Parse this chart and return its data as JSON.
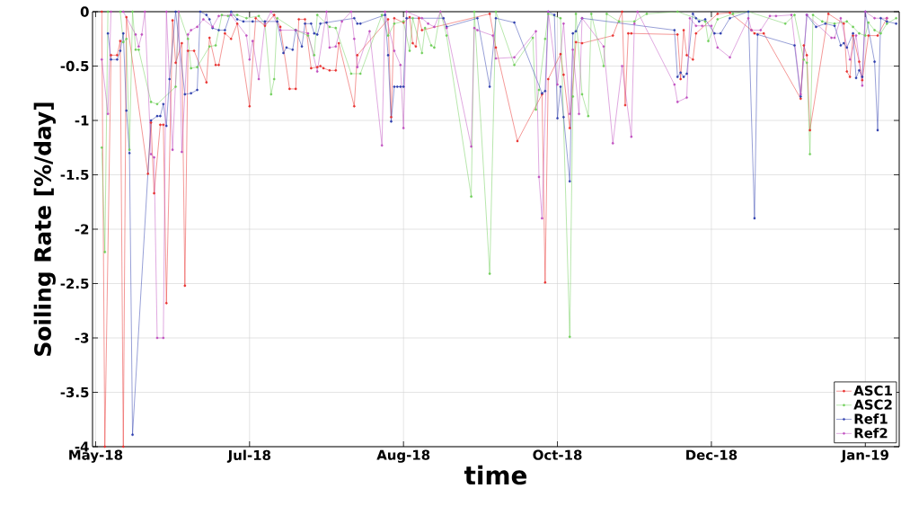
{
  "chart_data": {
    "type": "line",
    "xlabel": "time",
    "ylabel": "Soiling Rate [%/day]",
    "xlim": [
      "2018-05-14",
      "2019-01-31"
    ],
    "ylim": [
      -4,
      0
    ],
    "xticks": [
      {
        "value": "2018-05-15",
        "label": "May-18"
      },
      {
        "value": "2018-07-04",
        "label": "Jul-18"
      },
      {
        "value": "2018-08-23",
        "label": "Aug-18"
      },
      {
        "value": "2018-10-12",
        "label": "Oct-18"
      },
      {
        "value": "2018-12-01",
        "label": "Dec-18"
      },
      {
        "value": "2019-01-20",
        "label": "Jan-19"
      }
    ],
    "yticks": [
      -4,
      -3.5,
      -3,
      -2.5,
      -2,
      -1.5,
      -1,
      -0.5,
      0
    ],
    "grid": true,
    "legend": "bottom right",
    "marker": "circle",
    "line_style": "solid",
    "series": [
      {
        "name": "ASC1",
        "color": "#e8302f",
        "x": [
          "2018-05-17",
          "2018-05-18",
          "2018-05-20",
          "2018-05-22",
          "2018-05-23",
          "2018-05-24",
          "2018-05-25",
          "2018-06-01",
          "2018-06-02",
          "2018-06-03",
          "2018-06-05",
          "2018-06-06",
          "2018-06-07",
          "2018-06-09",
          "2018-06-10",
          "2018-06-12",
          "2018-06-13",
          "2018-06-14",
          "2018-06-16",
          "2018-06-20",
          "2018-06-21",
          "2018-06-23",
          "2018-06-24",
          "2018-06-26",
          "2018-06-28",
          "2018-06-30",
          "2018-07-04",
          "2018-07-06",
          "2018-07-09",
          "2018-07-12",
          "2018-07-14",
          "2018-07-17",
          "2018-07-19",
          "2018-07-20",
          "2018-07-22",
          "2018-07-24",
          "2018-07-26",
          "2018-07-27",
          "2018-07-28",
          "2018-07-30",
          "2018-08-01",
          "2018-08-02",
          "2018-08-07",
          "2018-08-08",
          "2018-08-18",
          "2018-08-19",
          "2018-08-20",
          "2018-08-23",
          "2018-08-25",
          "2018-08-26",
          "2018-08-27",
          "2018-08-28",
          "2018-08-29",
          "2018-09-20",
          "2018-09-22",
          "2018-09-29",
          "2018-10-07",
          "2018-10-08",
          "2018-10-09",
          "2018-10-13",
          "2018-10-14",
          "2018-10-16",
          "2018-10-18",
          "2018-10-20",
          "2018-10-30",
          "2018-11-02",
          "2018-11-03",
          "2018-11-04",
          "2018-11-05",
          "2018-11-20",
          "2018-11-21",
          "2018-11-22",
          "2018-11-23",
          "2018-11-25",
          "2018-11-26",
          "2018-12-03",
          "2018-12-07",
          "2018-12-14",
          "2018-12-15",
          "2018-12-18",
          "2018-12-30",
          "2018-12-31",
          "2019-01-01",
          "2019-01-02",
          "2019-01-08",
          "2019-01-13",
          "2019-01-14",
          "2019-01-15",
          "2019-01-16",
          "2019-01-18",
          "2019-01-19",
          "2019-01-21",
          "2019-01-24",
          "2019-01-27"
        ],
        "values": [
          0,
          -4,
          -0.4,
          -0.4,
          -0.27,
          -4,
          -0.05,
          -1.49,
          -1.02,
          -1.67,
          -1.04,
          -1.04,
          -2.68,
          -0.08,
          -0.47,
          -0.29,
          -2.52,
          -0.36,
          -0.36,
          -0.65,
          -0.24,
          -0.49,
          -0.49,
          -0.2,
          -0.25,
          -0.11,
          -0.87,
          -0.06,
          -0.13,
          -0.03,
          -0.14,
          -0.71,
          -0.71,
          -0.07,
          -0.07,
          -0.52,
          -0.51,
          -0.5,
          -0.52,
          -0.54,
          -0.54,
          -0.29,
          -0.87,
          -0.4,
          -0.07,
          -0.97,
          -0.06,
          -0.1,
          -0.05,
          -0.29,
          -0.32,
          -0.06,
          -0.17,
          -0.02,
          -0.33,
          -1.19,
          -0.76,
          -2.49,
          -0.62,
          -0.39,
          -0.58,
          -1.07,
          -0.28,
          -0.29,
          -0.22,
          0,
          -0.86,
          -0.2,
          -0.2,
          -0.21,
          -0.62,
          -0.17,
          -0.4,
          -0.44,
          -0.2,
          -0.02,
          -0.01,
          -0.17,
          -0.2,
          -0.2,
          -0.8,
          -0.31,
          -0.4,
          -1.09,
          -0.02,
          -0.11,
          -0.55,
          -0.6,
          -0.22,
          -0.46,
          -0.63,
          -0.22,
          -0.22,
          -0.06
        ]
      },
      {
        "name": "ASC2",
        "color": "#6fcf5a",
        "x": [
          "2018-05-17",
          "2018-05-18",
          "2018-05-19",
          "2018-05-23",
          "2018-05-24",
          "2018-05-25",
          "2018-05-26",
          "2018-05-27",
          "2018-05-28",
          "2018-05-29",
          "2018-06-02",
          "2018-06-04",
          "2018-06-10",
          "2018-06-11",
          "2018-06-14",
          "2018-06-15",
          "2018-06-17",
          "2018-06-21",
          "2018-06-23",
          "2018-06-25",
          "2018-06-27",
          "2018-06-30",
          "2018-07-03",
          "2018-07-07",
          "2018-07-09",
          "2018-07-11",
          "2018-07-12",
          "2018-07-13",
          "2018-07-19",
          "2018-07-23",
          "2018-07-25",
          "2018-07-26",
          "2018-07-30",
          "2018-08-01",
          "2018-08-06",
          "2018-08-09",
          "2018-08-16",
          "2018-08-18",
          "2018-08-20",
          "2018-08-23",
          "2018-08-25",
          "2018-08-26",
          "2018-08-29",
          "2018-08-30",
          "2018-09-01",
          "2018-09-02",
          "2018-09-04",
          "2018-09-06",
          "2018-09-14",
          "2018-09-15",
          "2018-09-20",
          "2018-09-22",
          "2018-09-28",
          "2018-10-04",
          "2018-10-05",
          "2018-10-06",
          "2018-10-08",
          "2018-10-09",
          "2018-10-13",
          "2018-10-16",
          "2018-10-17",
          "2018-10-18",
          "2018-10-20",
          "2018-10-22",
          "2018-10-23",
          "2018-10-27",
          "2018-10-28",
          "2018-11-01",
          "2018-11-06",
          "2018-11-10",
          "2018-11-20",
          "2018-11-29",
          "2018-11-30",
          "2018-12-03",
          "2018-12-08",
          "2018-12-13",
          "2018-12-25",
          "2018-12-28",
          "2018-12-31",
          "2019-01-01",
          "2019-01-02",
          "2019-01-03",
          "2019-01-06",
          "2019-01-10",
          "2019-01-14",
          "2019-01-16",
          "2019-01-18",
          "2019-01-20",
          "2019-01-21",
          "2019-01-23",
          "2019-01-25",
          "2019-01-27",
          "2019-01-30"
        ],
        "values": [
          -1.25,
          -2.21,
          0,
          0,
          -0.28,
          -0.25,
          -1.27,
          0,
          -0.35,
          -0.35,
          -0.83,
          -0.85,
          -0.69,
          0,
          -0.25,
          -0.52,
          -0.51,
          -0.32,
          -0.31,
          -0.03,
          -0.04,
          -0.03,
          -0.06,
          -0.04,
          -0.11,
          -0.76,
          -0.62,
          -0.06,
          -0.17,
          -0.22,
          -0.4,
          -0.03,
          -0.14,
          -0.15,
          -0.57,
          -0.57,
          -0.03,
          -0.22,
          -0.11,
          -0.09,
          -0.36,
          -0.06,
          -0.38,
          -0.15,
          -0.31,
          -0.33,
          0,
          -0.22,
          -1.7,
          0,
          -2.41,
          0,
          -0.49,
          -0.24,
          -0.9,
          -0.72,
          -0.25,
          -0.02,
          -0.06,
          -2.99,
          -0.78,
          -0.02,
          -0.76,
          -0.96,
          -0.02,
          -0.5,
          -0.02,
          -0.09,
          -0.09,
          -0.02,
          0,
          -0.09,
          -0.27,
          -0.07,
          -0.02,
          0,
          -0.11,
          -0.03,
          -0.44,
          -0.47,
          -1.31,
          -0.03,
          -0.09,
          -0.11,
          -0.09,
          -0.14,
          -0.2,
          -0.22,
          -0.1,
          -0.17,
          -0.2,
          -0.11,
          -0.06
        ]
      },
      {
        "name": "Ref1",
        "color": "#2f3fae",
        "x": [
          "2018-05-19",
          "2018-05-20",
          "2018-05-22",
          "2018-05-23",
          "2018-05-24",
          "2018-05-25",
          "2018-05-26",
          "2018-05-27",
          "2018-06-02",
          "2018-06-04",
          "2018-06-05",
          "2018-06-06",
          "2018-06-07",
          "2018-06-08",
          "2018-06-10",
          "2018-06-13",
          "2018-06-15",
          "2018-06-17",
          "2018-06-18",
          "2018-06-20",
          "2018-06-21",
          "2018-06-22",
          "2018-06-24",
          "2018-06-26",
          "2018-06-28",
          "2018-06-30",
          "2018-07-02",
          "2018-07-05",
          "2018-07-09",
          "2018-07-13",
          "2018-07-15",
          "2018-07-16",
          "2018-07-18",
          "2018-07-19",
          "2018-07-21",
          "2018-07-22",
          "2018-07-24",
          "2018-07-25",
          "2018-07-26",
          "2018-07-27",
          "2018-07-29",
          "2018-08-07",
          "2018-08-08",
          "2018-08-09",
          "2018-08-17",
          "2018-08-18",
          "2018-08-19",
          "2018-08-20",
          "2018-08-21",
          "2018-08-22",
          "2018-08-23",
          "2018-08-24",
          "2018-09-05",
          "2018-09-06",
          "2018-09-16",
          "2018-09-20",
          "2018-09-22",
          "2018-09-28",
          "2018-10-07",
          "2018-10-08",
          "2018-10-09",
          "2018-10-11",
          "2018-10-12",
          "2018-10-13",
          "2018-10-14",
          "2018-10-16",
          "2018-10-17",
          "2018-10-18",
          "2018-10-20",
          "2018-11-19",
          "2018-11-20",
          "2018-11-21",
          "2018-11-22",
          "2018-11-23",
          "2018-11-25",
          "2018-11-26",
          "2018-11-27",
          "2018-11-29",
          "2018-12-02",
          "2018-12-04",
          "2018-12-07",
          "2018-12-13",
          "2018-12-15",
          "2018-12-16",
          "2018-12-28",
          "2018-12-30",
          "2019-01-01",
          "2019-01-04",
          "2019-01-07",
          "2019-01-10",
          "2019-01-12",
          "2019-01-13",
          "2019-01-14",
          "2019-01-16",
          "2019-01-17",
          "2019-01-18",
          "2019-01-19",
          "2019-01-20",
          "2019-01-23",
          "2019-01-24",
          "2019-01-25",
          "2019-01-27",
          "2019-01-30"
        ],
        "values": [
          -0.2,
          -0.44,
          -0.44,
          -0.36,
          -0.2,
          -0.91,
          -1.3,
          -3.89,
          -1.0,
          -0.96,
          -0.96,
          -0.85,
          -1.05,
          -0.62,
          0,
          -0.76,
          -0.75,
          -0.72,
          0,
          -0.03,
          -0.07,
          -0.15,
          -0.17,
          -0.17,
          0,
          -0.07,
          -0.09,
          -0.09,
          -0.09,
          -0.09,
          -0.38,
          -0.33,
          -0.35,
          -0.17,
          -0.32,
          -0.11,
          -0.11,
          -0.2,
          -0.21,
          -0.11,
          -0.1,
          -0.06,
          -0.11,
          -0.11,
          -0.03,
          -0.4,
          -1.01,
          -0.69,
          -0.69,
          -0.69,
          -0.69,
          -0.06,
          -0.06,
          -0.14,
          -0.06,
          -0.69,
          -0.06,
          -0.1,
          -0.75,
          -0.73,
          0,
          -0.03,
          -0.98,
          -0.69,
          -0.97,
          -1.56,
          -0.2,
          -0.18,
          -0.06,
          -0.17,
          -0.6,
          -0.56,
          -0.6,
          -0.57,
          -0.02,
          -0.06,
          -0.09,
          -0.07,
          -0.2,
          -0.2,
          -0.06,
          0,
          -1.9,
          -0.21,
          -0.31,
          -0.78,
          -0.03,
          -0.14,
          -0.11,
          -0.13,
          -0.31,
          -0.29,
          -0.33,
          -0.2,
          -0.61,
          -0.54,
          -0.6,
          0,
          -0.46,
          -1.09,
          -0.06,
          -0.09,
          -0.11
        ]
      },
      {
        "name": "Ref2",
        "color": "#c050c0",
        "x": [
          "2018-05-17",
          "2018-05-19",
          "2018-05-20",
          "2018-05-24",
          "2018-05-28",
          "2018-05-29",
          "2018-05-30",
          "2018-05-31",
          "2018-06-02",
          "2018-06-03",
          "2018-06-04",
          "2018-06-06",
          "2018-06-07",
          "2018-06-09",
          "2018-06-11",
          "2018-06-12",
          "2018-06-14",
          "2018-06-15",
          "2018-06-17",
          "2018-06-19",
          "2018-06-22",
          "2018-06-24",
          "2018-06-28",
          "2018-07-03",
          "2018-07-04",
          "2018-07-05",
          "2018-07-07",
          "2018-07-09",
          "2018-07-11",
          "2018-07-14",
          "2018-07-19",
          "2018-07-23",
          "2018-07-26",
          "2018-07-29",
          "2018-07-30",
          "2018-08-01",
          "2018-08-03",
          "2018-08-06",
          "2018-08-07",
          "2018-08-08",
          "2018-08-12",
          "2018-08-16",
          "2018-08-17",
          "2018-08-20",
          "2018-08-22",
          "2018-08-23",
          "2018-08-24",
          "2018-08-29",
          "2018-08-31",
          "2018-09-02",
          "2018-09-04",
          "2018-09-06",
          "2018-09-14",
          "2018-09-15",
          "2018-09-16",
          "2018-09-21",
          "2018-09-22",
          "2018-09-28",
          "2018-10-05",
          "2018-10-06",
          "2018-10-07",
          "2018-10-09",
          "2018-10-12",
          "2018-10-14",
          "2018-10-16",
          "2018-10-17",
          "2018-10-19",
          "2018-10-20",
          "2018-10-27",
          "2018-10-30",
          "2018-11-02",
          "2018-11-05",
          "2018-11-06",
          "2018-11-07",
          "2018-11-19",
          "2018-11-20",
          "2018-11-23",
          "2018-11-24",
          "2018-11-26",
          "2018-11-28",
          "2018-12-01",
          "2018-12-03",
          "2018-12-07",
          "2018-12-13",
          "2018-12-14",
          "2018-12-17",
          "2018-12-20",
          "2018-12-22",
          "2018-12-27",
          "2018-12-30",
          "2019-01-01",
          "2019-01-09",
          "2019-01-10",
          "2019-01-12",
          "2019-01-15",
          "2019-01-17",
          "2019-01-19",
          "2019-01-20",
          "2019-01-23",
          "2019-01-27"
        ],
        "values": [
          -0.44,
          -0.94,
          0,
          0,
          -0.21,
          -0.32,
          -0.21,
          0,
          -1.31,
          -1.34,
          -3.0,
          -3.0,
          0,
          -1.27,
          0,
          -1.29,
          -0.21,
          -0.17,
          -0.14,
          -0.07,
          -0.14,
          -0.04,
          -0.03,
          -0.22,
          -0.44,
          -0.27,
          -0.62,
          -0.11,
          0,
          -0.17,
          -0.17,
          -0.2,
          -0.55,
          0,
          -0.33,
          -0.32,
          -0.09,
          0,
          -0.25,
          -0.51,
          -0.18,
          -1.23,
          0,
          -0.36,
          -0.49,
          -1.07,
          0,
          -0.06,
          -0.11,
          -0.14,
          0,
          -0.15,
          -1.24,
          -0.15,
          -0.17,
          -0.22,
          -0.43,
          -0.42,
          -0.18,
          -1.52,
          -1.9,
          0,
          -0.67,
          -0.11,
          -0.94,
          -0.35,
          -0.94,
          -0.06,
          -0.32,
          -1.21,
          -0.5,
          -1.15,
          -0.11,
          0,
          -0.67,
          -0.83,
          -0.79,
          -0.06,
          -0.13,
          -0.13,
          -0.13,
          -0.33,
          -0.42,
          -0.06,
          -0.17,
          -0.17,
          -0.04,
          -0.04,
          -0.03,
          -0.76,
          -0.03,
          -0.24,
          -0.24,
          -0.06,
          -0.44,
          -0.22,
          -0.68,
          0,
          -0.06,
          -0.06
        ]
      }
    ]
  }
}
